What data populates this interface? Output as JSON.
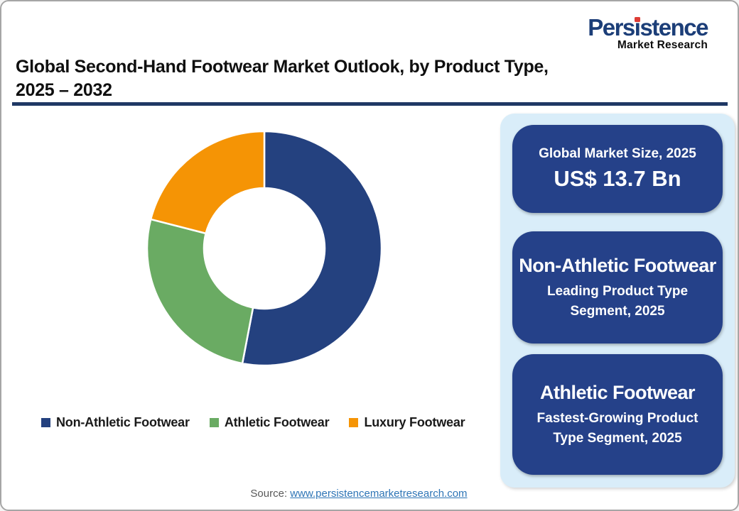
{
  "logo": {
    "brand_pre": "Pers",
    "brand_i": "i",
    "brand_post": "stence",
    "brand_full": "Persistence",
    "subtitle": "Market Research"
  },
  "header": {
    "title_line1": "Global Second-Hand Footwear Market Outlook, by Product Type,",
    "title_line2": "2025 – 2032"
  },
  "chart_data": {
    "type": "pie",
    "donut": true,
    "title": "Global Second-Hand Footwear Market Outlook, by Product Type, 2025 – 2032",
    "categories": [
      "Non-Athletic Footwear",
      "Athletic Footwear",
      "Luxury Footwear"
    ],
    "values_pct": [
      53,
      26,
      21
    ],
    "colors": [
      "#24417F",
      "#6AAB63",
      "#F59405"
    ],
    "start_angle_deg_from_top": 0,
    "direction": "clockwise",
    "inner_radius_ratio": 0.51,
    "legend_position": "bottom"
  },
  "legend": {
    "items": [
      {
        "label": "Non-Athletic Footwear",
        "color": "#24417F"
      },
      {
        "label": "Athletic Footwear",
        "color": "#6AAB63"
      },
      {
        "label": "Luxury Footwear",
        "color": "#F59405"
      }
    ]
  },
  "panel": {
    "boxes": [
      {
        "heading": "Global Market Size, 2025",
        "value": "US$ 13.7 Bn"
      },
      {
        "heading": "Non-Athletic Footwear",
        "subtext": "Leading Product Type Segment, 2025"
      },
      {
        "heading": "Athletic Footwear",
        "subtext": "Fastest-Growing Product Type Segment, 2025"
      }
    ]
  },
  "footer": {
    "source_label": "Source:",
    "source_link": "www.persistencemarketresearch.com"
  },
  "colors": {
    "accent_navy": "#1F3864",
    "box_navy": "#254189",
    "panel_light_blue": "#D9EDF9",
    "logo_navy": "#1C3E78",
    "logo_red": "#DD3C35",
    "link_blue": "#2E75B6"
  }
}
